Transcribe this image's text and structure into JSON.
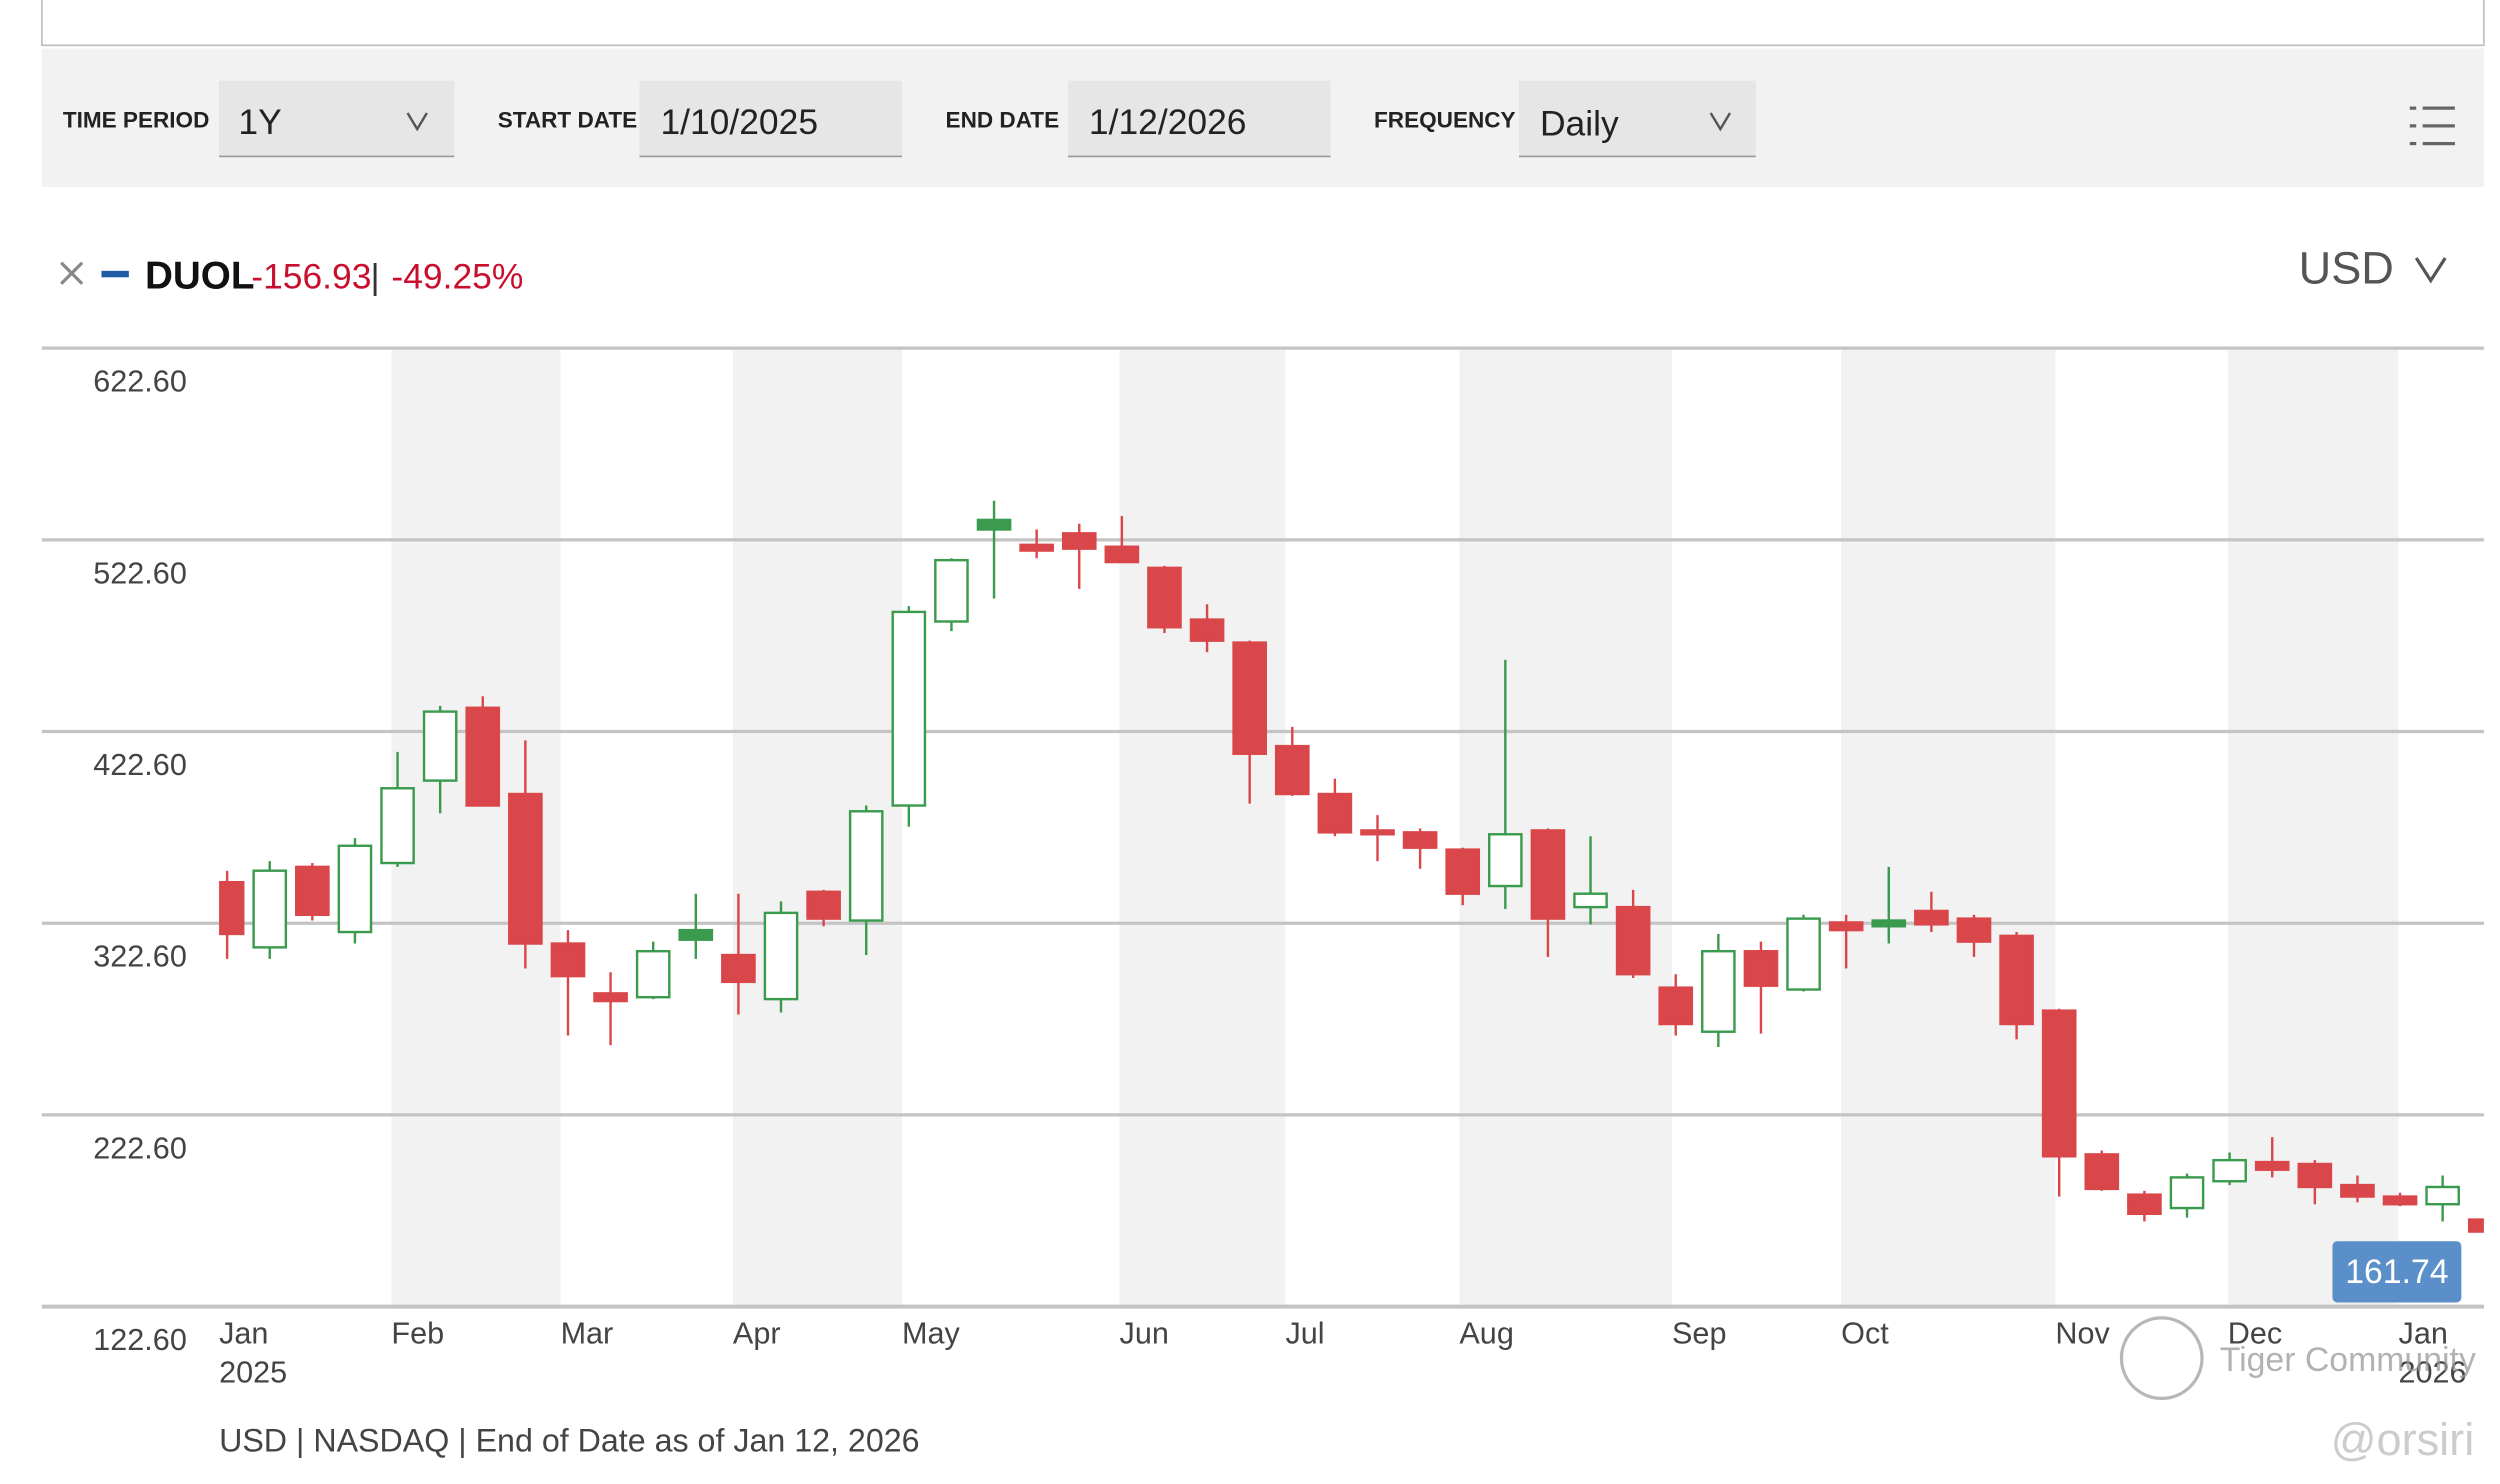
{
  "toolbar": {
    "time_period_label": "TIME PERIOD",
    "time_period": "1Y",
    "start_date_label": "START DATE",
    "start_date": "1/10/2025",
    "end_date_label": "END DATE",
    "end_date": "1/12/2026",
    "frequency_label": "FREQUENCY",
    "frequency": "Daily"
  },
  "legend": {
    "ticker": "DUOL",
    "change": "-156.93",
    "separator": "|",
    "change_pct": "-49.25%",
    "currency": "USD"
  },
  "footer": "USD | NASDAQ | End of Date as of Jan 12, 2026",
  "watermark": {
    "brand": "Tiger Community",
    "user": "@orsiri"
  },
  "chart_data": {
    "type": "candlestick",
    "categories": [
      null,
      null,
      null,
      null,
      null,
      null,
      null,
      null,
      null,
      null,
      null,
      null,
      null,
      null,
      null,
      null,
      null,
      null,
      null,
      null,
      null,
      null,
      null,
      null,
      null,
      null,
      null,
      null,
      null,
      null,
      null,
      null,
      null,
      null,
      null,
      null,
      null,
      null,
      null,
      null,
      null,
      null,
      null,
      null,
      null,
      null,
      null,
      null,
      null,
      null,
      null,
      null,
      null,
      null
    ],
    "open": [
      344,
      310,
      352,
      318,
      354,
      397,
      435,
      390,
      312,
      286,
      284,
      314,
      306,
      283,
      339,
      324,
      384,
      480,
      528,
      520,
      526,
      519,
      508,
      481,
      469,
      415,
      390,
      371,
      370,
      361,
      342,
      371,
      331,
      331,
      289,
      266,
      308,
      288,
      323,
      321,
      329,
      325,
      316,
      277,
      202,
      181,
      174,
      188,
      198,
      197,
      186,
      180,
      176,
      168
    ],
    "high": [
      350,
      355,
      354,
      367,
      412,
      436,
      441,
      418,
      319,
      297,
      313,
      338,
      338,
      334,
      340,
      384,
      488,
      513,
      543,
      528,
      531,
      535,
      509,
      489,
      470,
      425,
      398,
      379,
      372,
      362,
      460,
      372,
      368,
      340,
      296,
      317,
      313,
      327,
      327,
      352,
      339,
      327,
      318,
      278,
      204,
      183,
      192,
      203,
      211,
      199,
      191,
      182,
      191,
      169
    ],
    "low": [
      304,
      304,
      324,
      312,
      352,
      380,
      384,
      299,
      264,
      259,
      283,
      304,
      275,
      276,
      321,
      306,
      373,
      475,
      492,
      513,
      497,
      511,
      474,
      464,
      385,
      389,
      368,
      355,
      351,
      332,
      330,
      305,
      322,
      294,
      264,
      258,
      265,
      287,
      299,
      312,
      318,
      305,
      262,
      180,
      183,
      167,
      169,
      186,
      190,
      176,
      177,
      175,
      167,
      160
    ],
    "close": [
      317,
      350,
      327,
      363,
      393,
      433,
      384,
      312,
      295,
      282,
      308,
      319,
      292,
      328,
      325,
      381,
      485,
      512,
      533,
      517,
      518,
      511,
      477,
      470,
      411,
      390,
      370,
      369,
      362,
      338,
      369,
      325,
      338,
      296,
      270,
      308,
      290,
      325,
      319,
      324,
      322,
      313,
      270,
      201,
      184,
      171,
      190,
      199,
      194,
      185,
      180,
      176,
      185,
      161.74
    ],
    "up_color": "#3a9a4e",
    "down_color": "#d9474a",
    "ylim": [
      122.6,
      622.6
    ],
    "yticks": [
      {
        "value": 122.6,
        "label": "122.60"
      },
      {
        "value": 222.6,
        "label": "222.60"
      },
      {
        "value": 322.6,
        "label": "322.60"
      },
      {
        "value": 422.6,
        "label": "422.60"
      },
      {
        "value": 522.6,
        "label": "522.60"
      },
      {
        "value": 622.6,
        "label": "622.60"
      }
    ],
    "x_labels": [
      "Jan",
      "Feb",
      "Mar",
      "Apr",
      "May",
      "Jun",
      "Jul",
      "Aug",
      "Sep",
      "Oct",
      "Nov",
      "Dec",
      "Jan"
    ],
    "year_labels": [
      "2025",
      null,
      null,
      null,
      null,
      null,
      null,
      null,
      null,
      null,
      null,
      null,
      "2026"
    ],
    "grid": true
  }
}
